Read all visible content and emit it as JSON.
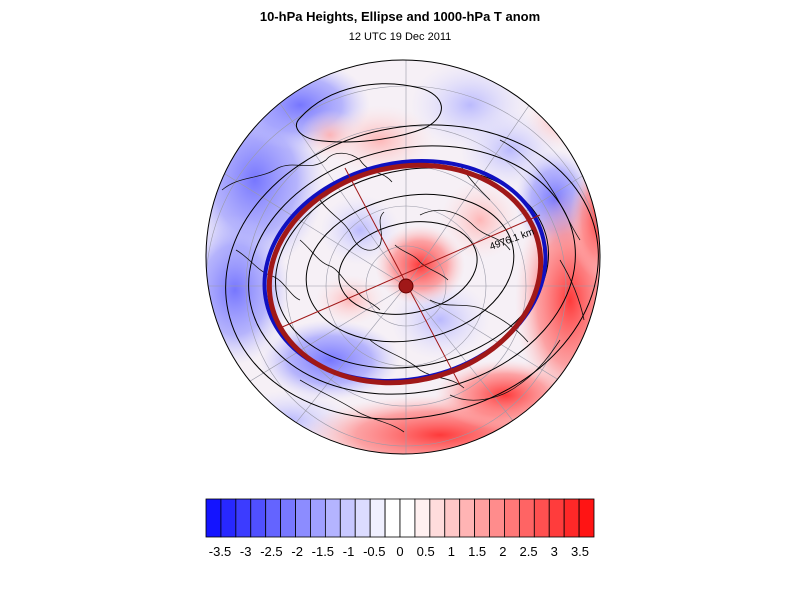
{
  "title": "10-hPa Heights, Ellipse and 1000-hPa T anom",
  "subtitle": "12 UTC 19 Dec 2011",
  "ellipse_label": "4976.1 km",
  "colorbar": {
    "labels": [
      "-3.5",
      "-3",
      "-2.5",
      "-2",
      "-1.5",
      "-1",
      "-0.5",
      "0",
      "0.5",
      "1",
      "1.5",
      "2",
      "2.5",
      "3",
      "3.5"
    ],
    "colors": [
      "#1414ff",
      "#2828ff",
      "#3c3cff",
      "#5050ff",
      "#6464ff",
      "#7878ff",
      "#8c8cff",
      "#a0a0ff",
      "#b4b4ff",
      "#c8c8ff",
      "#dcdcff",
      "#f0f0ff",
      "#ffffff",
      "#ffffff",
      "#fff0f0",
      "#ffdcdc",
      "#ffc8c8",
      "#ffb4b4",
      "#ffa0a0",
      "#ff8c8c",
      "#ff7878",
      "#ff6464",
      "#ff5050",
      "#ff3c3c",
      "#ff2828",
      "#ff1414"
    ]
  },
  "colors": {
    "cold": "#3c3cff",
    "warm": "#ff3c3c",
    "ellipse_blue": "#1010c0",
    "ellipse_red": "#a01818"
  }
}
